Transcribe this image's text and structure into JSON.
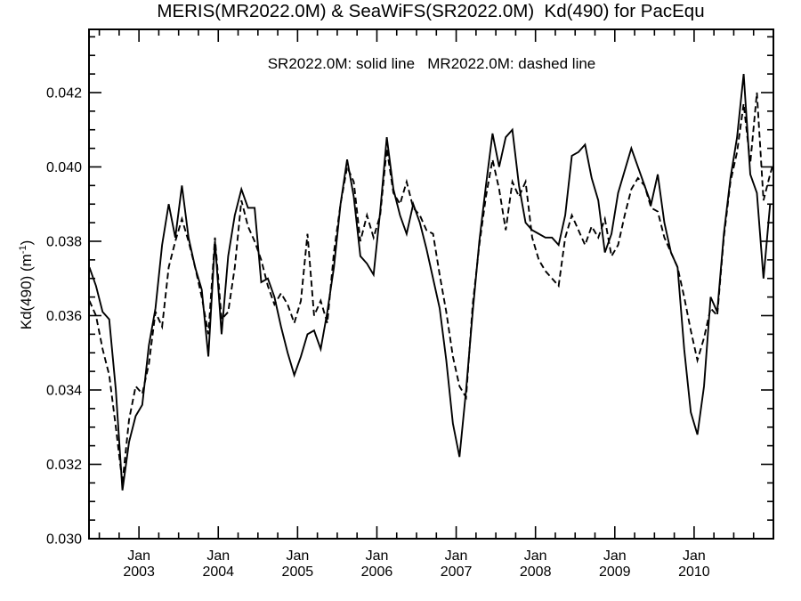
{
  "title": "MERIS(MR2022.0M) & SeaWiFS(SR2022.0M)  Kd(490) for PacEqu",
  "legend_note": "SR2022.0M: solid line   MR2022.0M: dashed line",
  "y_axis_label": {
    "prefix": "Kd(490) (m",
    "sup": "-1",
    "suffix": ")"
  },
  "line_color": "#000000",
  "chart_data": {
    "type": "line",
    "title": "MERIS(MR2022.0M) & SeaWiFS(SR2022.0M)  Kd(490) for PacEqu",
    "xlabel": "",
    "ylabel": "Kd(490) (m-1)",
    "x_domain": [
      2002.37,
      2011.0
    ],
    "ylim": [
      0.03,
      0.0437
    ],
    "grid": false,
    "legend_position": "top-center",
    "x_major_ticks": [
      2003,
      2004,
      2005,
      2006,
      2007,
      2008,
      2009,
      2010
    ],
    "x_month_label": "Jan",
    "x_minor_step_years": 0.25,
    "y_major_ticks": [
      0.03,
      0.032,
      0.034,
      0.036,
      0.038,
      0.04,
      0.042
    ],
    "y_minor_step": 0.0005,
    "series": [
      {
        "name": "SeaWiFS SR2022.0M",
        "legend": "SR2022.0M: solid line",
        "style": "solid",
        "start_year": 2002,
        "start_month": 5,
        "values": [
          0.0373,
          0.0368,
          0.0361,
          0.0359,
          0.034,
          0.0313,
          0.0326,
          0.0333,
          0.0336,
          0.0352,
          0.0362,
          0.0379,
          0.039,
          0.0381,
          0.0395,
          0.0381,
          0.0373,
          0.0367,
          0.0349,
          0.038,
          0.0355,
          0.0376,
          0.0387,
          0.0394,
          0.0389,
          0.0389,
          0.0369,
          0.037,
          0.0365,
          0.0357,
          0.035,
          0.0344,
          0.0349,
          0.0355,
          0.0356,
          0.0351,
          0.0361,
          0.0373,
          0.039,
          0.0402,
          0.0392,
          0.0376,
          0.0374,
          0.0371,
          0.0388,
          0.0408,
          0.0394,
          0.0387,
          0.0382,
          0.039,
          0.0385,
          0.0378,
          0.037,
          0.0362,
          0.0348,
          0.0331,
          0.0322,
          0.034,
          0.0361,
          0.038,
          0.0395,
          0.0409,
          0.04,
          0.0408,
          0.041,
          0.0395,
          0.0385,
          0.0383,
          0.0382,
          0.0381,
          0.0381,
          0.0379,
          0.0387,
          0.0403,
          0.0404,
          0.0406,
          0.0397,
          0.0391,
          0.0377,
          0.0382,
          0.0393,
          0.0399,
          0.0405,
          0.04,
          0.0395,
          0.039,
          0.0398,
          0.0385,
          0.0377,
          0.0373,
          0.0351,
          0.0334,
          0.0328,
          0.0341,
          0.0365,
          0.0361,
          0.0382,
          0.0397,
          0.0408,
          0.0425,
          0.0398,
          0.0393,
          0.037,
          0.039
        ]
      },
      {
        "name": "MERIS MR2022.0M",
        "legend": "MR2022.0M: dashed line",
        "style": "dashed",
        "start_year": 2002,
        "start_month": 5,
        "values": [
          0.0364,
          0.036,
          0.0351,
          0.0344,
          0.033,
          0.0315,
          0.0332,
          0.0341,
          0.0339,
          0.0347,
          0.0361,
          0.0357,
          0.0373,
          0.038,
          0.0386,
          0.038,
          0.0373,
          0.0365,
          0.0355,
          0.0381,
          0.0359,
          0.0361,
          0.0373,
          0.0391,
          0.0384,
          0.038,
          0.0375,
          0.0368,
          0.0363,
          0.0366,
          0.0363,
          0.0358,
          0.0364,
          0.0382,
          0.036,
          0.0364,
          0.0358,
          0.0377,
          0.039,
          0.04,
          0.0396,
          0.038,
          0.0387,
          0.0381,
          0.0387,
          0.0405,
          0.0393,
          0.039,
          0.0396,
          0.0389,
          0.0387,
          0.0383,
          0.0382,
          0.0371,
          0.0361,
          0.0349,
          0.0341,
          0.0338,
          0.0363,
          0.0379,
          0.0392,
          0.0402,
          0.0394,
          0.0383,
          0.0396,
          0.0392,
          0.0396,
          0.0381,
          0.0375,
          0.0372,
          0.037,
          0.0368,
          0.0381,
          0.0387,
          0.0383,
          0.0379,
          0.0384,
          0.0381,
          0.0386,
          0.0376,
          0.0379,
          0.0387,
          0.0394,
          0.0397,
          0.0395,
          0.0389,
          0.0388,
          0.0381,
          0.0377,
          0.0373,
          0.0365,
          0.0356,
          0.0348,
          0.0354,
          0.0362,
          0.036,
          0.0381,
          0.0396,
          0.0404,
          0.0417,
          0.0401,
          0.042,
          0.0391,
          0.0398,
          0.0404
        ]
      }
    ]
  }
}
